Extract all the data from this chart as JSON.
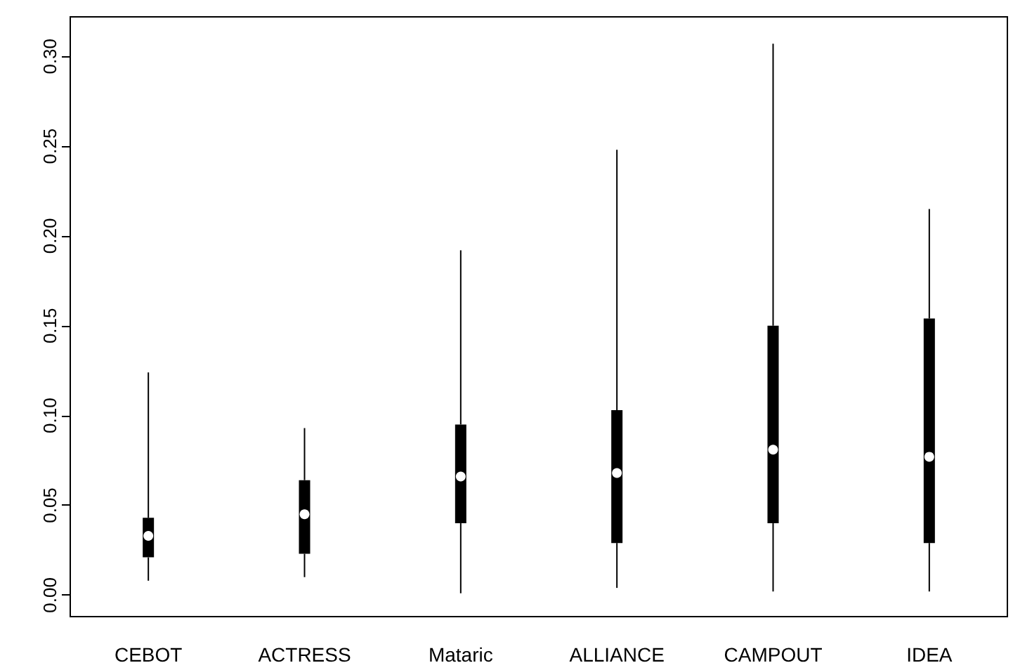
{
  "chart_data": {
    "type": "box",
    "categories": [
      "CEBOT",
      "ACTRESS",
      "Mataric",
      "ALLIANCE",
      "CAMPOUT",
      "IDEA"
    ],
    "boxes": [
      {
        "low": 0.008,
        "q1": 0.021,
        "median": 0.033,
        "q3": 0.043,
        "high": 0.124
      },
      {
        "low": 0.01,
        "q1": 0.023,
        "median": 0.045,
        "q3": 0.064,
        "high": 0.093
      },
      {
        "low": 0.001,
        "q1": 0.04,
        "median": 0.066,
        "q3": 0.095,
        "high": 0.192
      },
      {
        "low": 0.004,
        "q1": 0.029,
        "median": 0.068,
        "q3": 0.103,
        "high": 0.248
      },
      {
        "low": 0.002,
        "q1": 0.04,
        "median": 0.081,
        "q3": 0.15,
        "high": 0.307
      },
      {
        "low": 0.002,
        "q1": 0.029,
        "median": 0.077,
        "q3": 0.154,
        "high": 0.215
      }
    ],
    "color": "#000000",
    "ylim": [
      -0.012,
      0.322
    ],
    "yticks": [
      {
        "value": 0,
        "label": "0.00"
      },
      {
        "value": 0.05,
        "label": "0.05"
      },
      {
        "value": 0.1,
        "label": "0.10"
      },
      {
        "value": 0.15,
        "label": "0.15"
      },
      {
        "value": 0.2,
        "label": "0.20"
      },
      {
        "value": 0.25,
        "label": "0.25"
      },
      {
        "value": 0.3,
        "label": "0.30"
      }
    ],
    "grid": false
  }
}
